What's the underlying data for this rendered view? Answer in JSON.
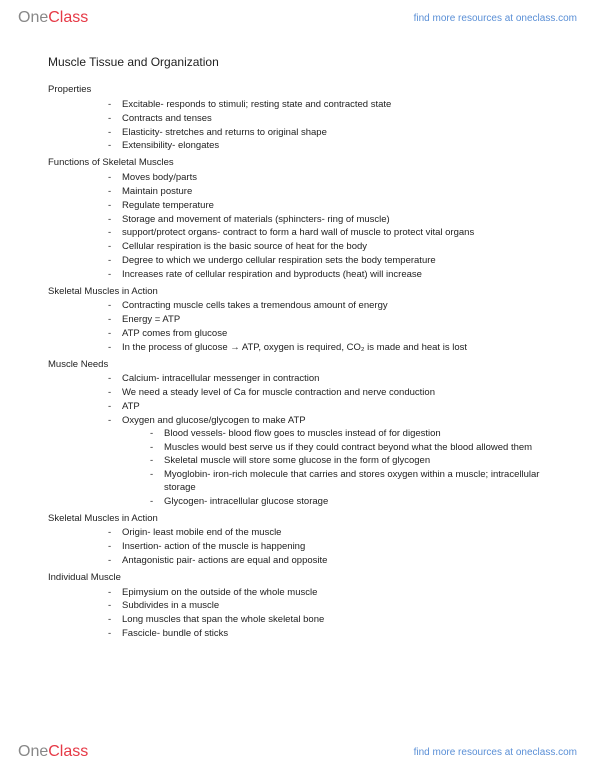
{
  "brand": {
    "one": "One",
    "class": "Class"
  },
  "resources_link": "find more resources at oneclass.com",
  "title": "Muscle Tissue and Organization",
  "sections": [
    {
      "label": "Properties",
      "items": [
        {
          "text": "Excitable- responds to stimuli; resting state and contracted state"
        },
        {
          "text": "Contracts and tenses"
        },
        {
          "text": "Elasticity- stretches and returns to original shape"
        },
        {
          "text": "Extensibility- elongates"
        }
      ]
    },
    {
      "label": "Functions of Skeletal Muscles",
      "items": [
        {
          "text": "Moves body/parts"
        },
        {
          "text": "Maintain posture"
        },
        {
          "text": "Regulate temperature"
        },
        {
          "text": "Storage and movement of materials (sphincters- ring of muscle)"
        },
        {
          "text": "support/protect organs- contract to form a hard wall of muscle to protect vital organs"
        },
        {
          "text": "Cellular respiration is the basic source of heat for the body"
        },
        {
          "text": "Degree to which we undergo cellular respiration sets the body temperature"
        },
        {
          "text": "Increases rate of cellular respiration and byproducts (heat) will increase"
        }
      ]
    },
    {
      "label": "Skeletal Muscles in Action",
      "items": [
        {
          "text": "Contracting muscle cells takes a tremendous amount of energy"
        },
        {
          "text": "Energy = ATP"
        },
        {
          "text": "ATP comes from glucose"
        },
        {
          "text": "In the process of glucose → ATP, oxygen is required, CO₂ is made and heat is lost"
        }
      ]
    },
    {
      "label": "Muscle Needs",
      "items": [
        {
          "text": "Calcium- intracellular messenger in contraction"
        },
        {
          "text": "We need a steady level of Ca for muscle contraction and nerve conduction"
        },
        {
          "text": "ATP"
        },
        {
          "text": "Oxygen and glucose/glycogen to make ATP",
          "sub": [
            "Blood vessels- blood flow goes to muscles instead of for digestion",
            "Muscles would best serve us if they could contract beyond what the blood allowed them",
            "Skeletal muscle will store some glucose in the form of glycogen",
            "Myoglobin- iron-rich molecule that carries and stores oxygen within a muscle; intracellular storage",
            "Glycogen- intracellular glucose storage"
          ]
        }
      ]
    },
    {
      "label": "Skeletal Muscles in Action",
      "items": [
        {
          "text": "Origin- least mobile end of the muscle"
        },
        {
          "text": "Insertion- action of the muscle is happening"
        },
        {
          "text": "Antagonistic pair- actions are equal and opposite"
        }
      ]
    },
    {
      "label": "Individual Muscle",
      "items": [
        {
          "text": "Epimysium on the outside of the whole muscle"
        },
        {
          "text": "Subdivides in a muscle"
        },
        {
          "text": "Long muscles that span the whole skeletal bone"
        },
        {
          "text": "Fascicle- bundle of sticks"
        }
      ]
    }
  ]
}
